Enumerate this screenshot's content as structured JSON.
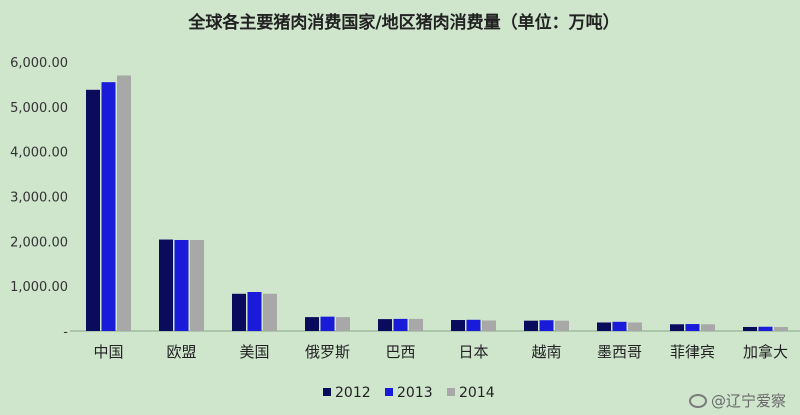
{
  "chart_data": {
    "type": "bar",
    "title": "全球各主要猪肉消费国家/地区猪肉消费量（单位：万吨）",
    "categories": [
      "中国",
      "欧盟",
      "美国",
      "俄罗斯",
      "巴西",
      "日本",
      "越南",
      "墨西哥",
      "菲律宾",
      "加拿大"
    ],
    "series": [
      {
        "name": "2012",
        "color": "#0b0b5e",
        "values": [
          5380,
          2040,
          830,
          310,
          265,
          245,
          230,
          190,
          150,
          90
        ]
      },
      {
        "name": "2013",
        "color": "#1a1ad9",
        "values": [
          5550,
          2030,
          870,
          320,
          270,
          250,
          240,
          205,
          155,
          95
        ]
      },
      {
        "name": "2014",
        "color": "#a8a8a8",
        "values": [
          5700,
          2030,
          830,
          310,
          270,
          235,
          230,
          190,
          150,
          90
        ]
      }
    ],
    "yticks": [
      "-",
      "1,000.00",
      "2,000.00",
      "3,000.00",
      "4,000.00",
      "5,000.00",
      "6,000.00"
    ],
    "ylim": [
      0,
      6000
    ],
    "grid": false,
    "legend_position": "bottom"
  },
  "watermark": {
    "icon": "weibo-icon",
    "text": "@辽宁爱察"
  }
}
